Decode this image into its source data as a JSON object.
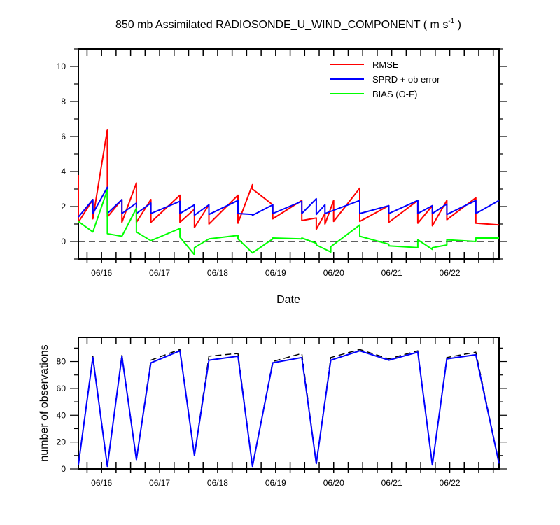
{
  "chart_data": [
    {
      "type": "line",
      "title": "850 mb Assimilated RADIOSONDE_U_WIND_COMPONENT ( m s",
      "title_sup": "-1",
      "title_end": " )",
      "xlabel": "Date",
      "ylabel": "",
      "xlim": [
        15.6,
        22.85
      ],
      "ylim": [
        -1,
        11
      ],
      "xticks": [
        {
          "value": 16.0,
          "label": "06/16"
        },
        {
          "value": 17.0,
          "label": "06/17"
        },
        {
          "value": 18.0,
          "label": "06/18"
        },
        {
          "value": 19.0,
          "label": "06/19"
        },
        {
          "value": 20.0,
          "label": "06/20"
        },
        {
          "value": 21.0,
          "label": "06/21"
        },
        {
          "value": 22.0,
          "label": "06/22"
        }
      ],
      "yticks": [
        0,
        2,
        4,
        6,
        8,
        10
      ],
      "reference_line": {
        "y": 0,
        "style": "dashed"
      },
      "legend_position": "top-right",
      "series": [
        {
          "name": "RMSE",
          "color": "#ff0000",
          "points": [
            [
              15.6,
              3.8
            ],
            [
              15.6,
              1.1
            ],
            [
              15.85,
              2.4
            ],
            [
              15.85,
              1.3
            ],
            [
              16.1,
              6.4
            ],
            [
              16.1,
              1.4
            ],
            [
              16.35,
              2.4
            ],
            [
              16.35,
              1.1
            ],
            [
              16.6,
              3.35
            ],
            [
              16.6,
              1.1
            ],
            [
              16.85,
              2.4
            ],
            [
              16.85,
              1.1
            ],
            [
              17.35,
              2.65
            ],
            [
              17.35,
              1.1
            ],
            [
              17.6,
              1.85
            ],
            [
              17.6,
              0.8
            ],
            [
              17.85,
              2.1
            ],
            [
              17.85,
              1.0
            ],
            [
              18.35,
              2.65
            ],
            [
              18.35,
              1.05
            ],
            [
              18.6,
              3.25
            ],
            [
              18.6,
              3.0
            ],
            [
              18.95,
              2.1
            ],
            [
              18.95,
              1.3
            ],
            [
              19.45,
              2.35
            ],
            [
              19.45,
              1.2
            ],
            [
              19.7,
              1.35
            ],
            [
              19.7,
              0.7
            ],
            [
              19.85,
              1.6
            ],
            [
              19.85,
              1.0
            ],
            [
              20.0,
              2.35
            ],
            [
              20.0,
              1.15
            ],
            [
              20.45,
              3.05
            ],
            [
              20.45,
              1.15
            ],
            [
              20.95,
              2.05
            ],
            [
              20.95,
              1.1
            ],
            [
              21.45,
              2.35
            ],
            [
              21.45,
              1.05
            ],
            [
              21.7,
              2.05
            ],
            [
              21.7,
              0.9
            ],
            [
              21.95,
              2.35
            ],
            [
              21.95,
              1.25
            ],
            [
              22.45,
              2.5
            ],
            [
              22.45,
              1.05
            ],
            [
              22.85,
              0.95
            ]
          ]
        },
        {
          "name": "SPRD + ob error",
          "color": "#0000ff",
          "points": [
            [
              15.6,
              1.4
            ],
            [
              15.85,
              2.4
            ],
            [
              15.85,
              1.6
            ],
            [
              16.1,
              3.1
            ],
            [
              16.1,
              1.6
            ],
            [
              16.35,
              2.4
            ],
            [
              16.35,
              1.6
            ],
            [
              16.6,
              2.2
            ],
            [
              16.6,
              1.6
            ],
            [
              16.85,
              2.2
            ],
            [
              16.85,
              1.6
            ],
            [
              17.35,
              2.3
            ],
            [
              17.35,
              1.6
            ],
            [
              17.6,
              2.1
            ],
            [
              17.6,
              1.5
            ],
            [
              17.85,
              2.1
            ],
            [
              17.85,
              1.55
            ],
            [
              18.35,
              2.35
            ],
            [
              18.35,
              1.6
            ],
            [
              18.6,
              1.55
            ],
            [
              18.6,
              1.5
            ],
            [
              18.95,
              2.1
            ],
            [
              18.95,
              1.6
            ],
            [
              19.45,
              2.3
            ],
            [
              19.45,
              1.6
            ],
            [
              19.7,
              2.45
            ],
            [
              19.7,
              1.55
            ],
            [
              19.85,
              2.1
            ],
            [
              19.85,
              1.6
            ],
            [
              20.45,
              2.35
            ],
            [
              20.45,
              1.6
            ],
            [
              20.95,
              2.05
            ],
            [
              20.95,
              1.6
            ],
            [
              21.45,
              2.35
            ],
            [
              21.45,
              1.6
            ],
            [
              21.7,
              2.05
            ],
            [
              21.7,
              1.6
            ],
            [
              21.95,
              2.15
            ],
            [
              21.95,
              1.55
            ],
            [
              22.45,
              2.35
            ],
            [
              22.45,
              1.6
            ],
            [
              22.85,
              2.35
            ]
          ]
        },
        {
          "name": "BIAS (O-F)",
          "color": "#00ff00",
          "points": [
            [
              15.6,
              1.15
            ],
            [
              15.85,
              0.55
            ],
            [
              16.1,
              2.95
            ],
            [
              16.1,
              0.45
            ],
            [
              16.35,
              0.3
            ],
            [
              16.6,
              1.9
            ],
            [
              16.6,
              0.55
            ],
            [
              16.85,
              0.05
            ],
            [
              17.35,
              0.75
            ],
            [
              17.35,
              0.25
            ],
            [
              17.6,
              -0.75
            ],
            [
              17.6,
              -0.35
            ],
            [
              17.85,
              0.15
            ],
            [
              18.35,
              0.35
            ],
            [
              18.35,
              0.15
            ],
            [
              18.6,
              -0.65
            ],
            [
              18.95,
              0.15
            ],
            [
              18.95,
              0.2
            ],
            [
              19.45,
              0.15
            ],
            [
              19.45,
              0.2
            ],
            [
              19.7,
              -0.1
            ],
            [
              19.7,
              -0.2
            ],
            [
              19.95,
              -0.6
            ],
            [
              19.95,
              -0.3
            ],
            [
              20.45,
              0.95
            ],
            [
              20.45,
              0.3
            ],
            [
              20.95,
              -0.15
            ],
            [
              20.95,
              -0.25
            ],
            [
              21.45,
              -0.35
            ],
            [
              21.45,
              0.1
            ],
            [
              21.7,
              -0.45
            ],
            [
              21.7,
              -0.35
            ],
            [
              21.95,
              -0.2
            ],
            [
              21.95,
              0.1
            ],
            [
              22.45,
              0.0
            ],
            [
              22.45,
              0.2
            ],
            [
              22.85,
              0.2
            ]
          ]
        }
      ]
    },
    {
      "type": "line",
      "title": "",
      "xlabel": "",
      "ylabel": "number of observations",
      "xlim": [
        15.6,
        22.85
      ],
      "ylim": [
        0,
        98
      ],
      "xticks": [
        {
          "value": 16.0,
          "label": "06/16"
        },
        {
          "value": 17.0,
          "label": "06/17"
        },
        {
          "value": 18.0,
          "label": "06/18"
        },
        {
          "value": 19.0,
          "label": "06/19"
        },
        {
          "value": 20.0,
          "label": "06/20"
        },
        {
          "value": 21.0,
          "label": "06/21"
        },
        {
          "value": 22.0,
          "label": "06/22"
        }
      ],
      "yticks": [
        0,
        20,
        40,
        60,
        80
      ],
      "series": [
        {
          "color": "#000000",
          "dashed": true,
          "points": [
            [
              15.6,
              3
            ],
            [
              15.85,
              84
            ],
            [
              16.1,
              2
            ],
            [
              16.35,
              85
            ],
            [
              16.6,
              7
            ],
            [
              16.85,
              81
            ],
            [
              17.35,
              89
            ],
            [
              17.6,
              10
            ],
            [
              17.85,
              84
            ],
            [
              18.35,
              86
            ],
            [
              18.6,
              2
            ],
            [
              18.95,
              80
            ],
            [
              19.45,
              86
            ],
            [
              19.7,
              4
            ],
            [
              19.95,
              83
            ],
            [
              20.45,
              89
            ],
            [
              20.95,
              82
            ],
            [
              21.45,
              88
            ],
            [
              21.7,
              3
            ],
            [
              21.95,
              83
            ],
            [
              22.45,
              87
            ],
            [
              22.85,
              4
            ]
          ]
        },
        {
          "color": "#0000ff",
          "dashed": false,
          "points": [
            [
              15.6,
              3
            ],
            [
              15.85,
              83
            ],
            [
              16.1,
              2
            ],
            [
              16.35,
              84
            ],
            [
              16.6,
              7
            ],
            [
              16.85,
              79
            ],
            [
              17.35,
              88
            ],
            [
              17.6,
              10
            ],
            [
              17.85,
              81
            ],
            [
              18.35,
              84
            ],
            [
              18.6,
              2
            ],
            [
              18.95,
              79
            ],
            [
              19.45,
              83
            ],
            [
              19.7,
              4
            ],
            [
              19.95,
              81
            ],
            [
              20.45,
              88
            ],
            [
              20.95,
              81
            ],
            [
              21.45,
              87
            ],
            [
              21.7,
              3
            ],
            [
              21.95,
              82
            ],
            [
              22.45,
              85
            ],
            [
              22.85,
              4
            ]
          ]
        }
      ]
    }
  ]
}
